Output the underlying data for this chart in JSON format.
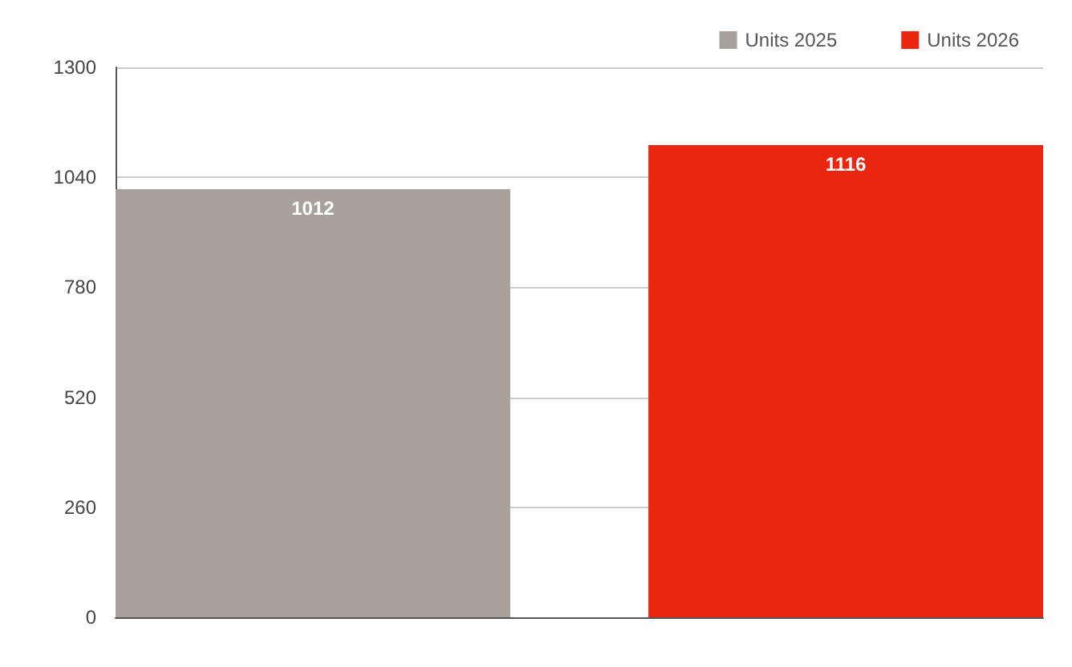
{
  "chart_data": {
    "type": "bar",
    "categories": [
      null
    ],
    "series": [
      {
        "name": "Units 2025",
        "color": "#a8a19b",
        "values": [
          1012
        ]
      },
      {
        "name": "Units 2026",
        "color": "#ea2510",
        "values": [
          1116
        ]
      }
    ],
    "ylim": [
      0,
      1300
    ],
    "yticks": [
      0,
      260,
      520,
      780,
      1040,
      1300
    ],
    "grid": "y",
    "legend": "top right",
    "data_labels": true
  }
}
